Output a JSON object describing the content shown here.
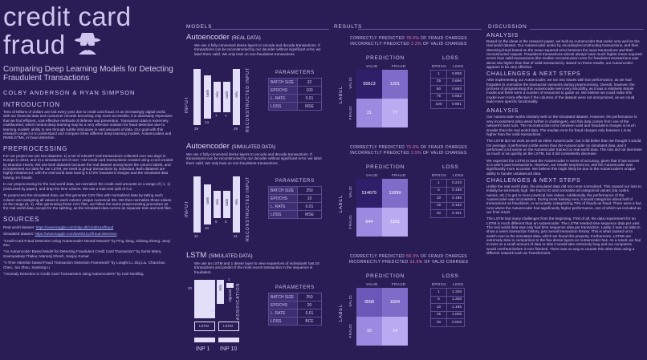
{
  "poster": {
    "title_line1": "credit card",
    "title_line2": "fraud",
    "logo_icon": "spy-icon",
    "subtitle": "Comparing Deep Learning Models for Detecting Fraudulent Transactions",
    "authors": "COLBY ANDERSON & RYAN SIMPSON"
  },
  "intro": {
    "heading": "INTRODUCTION",
    "text": "Tens of billions of dollars are lost every year due to credit card fraud. In an increasingly digital world, with our financial data and consumer records becoming only more accessible, it is absolutely imperative that we find efficient, cost-effective methods of defense and prevention. Transaction data is extremely multifaceted, which means deep learning may be a very effective solution for fraud detection due to learning models' ability to see through subtle intricacies in vast amounts of data. Our goal with this research project is to understand and compare three different deep learning models, Autoencoders and RNN/LSTMs, in fraud detection."
  },
  "preproc": {
    "heading": "PREPROCESSING",
    "p1": "For our project we use two datasets: 1) a set of 248,807 real transactions collected over two days in Europe in 2013, and 2) a simulated set of over ~1M credit card transactions created using a tool created by Brandon Harris. We use both datasets because the real dataset anonymizes the column labels, and to implement our idea for our LSTM, we need to group transactions by individual. Both datasets are highly imbalanced, with the real world data having 0.172% fraudulent charges and the simulated data having 1% frauds.",
    "p2": "In our preprocessing for the real world data, we normalize the credit card amounts on a range of [-1, 1] (instructed by paper), and drop the time column. We use a train-test split of 0.2.",
    "p3": "To preprocess the simulated data, we first generate CSV files with normalized data by taking each column and assigning all values in each column unique numerical IDs. We then normalize those values on the range (0, 1). After generating these CSV files, we follow the same preprocessing procedure as the real world data, except for the splitting, as the simulated data comes as separate train and test files."
  },
  "sources": {
    "heading": "SOURCES",
    "real_label": "Real world dataset: ",
    "real_url": "https://www.kaggle.com/mlg-ulb/creditcardfraud",
    "sim_label": "Simulated dataset: ",
    "sim_url": "https://www.kaggle.com/kartik2112/fraud-detection",
    "r1": "\"Credit Card Fraud Detection Using Autoencoder Neural Network\" by Ping Jiang, Jinliang Zhang, Junyi Zou",
    "r2": "\"An Autoencoder Based Model for Detecting Fraudulent Credit Card Transaction\" by Sumit Misra, Soumyadeep Thakur, Manosij Ghosh, Sanjoy Kumar",
    "r3": "\"A Time Attention based Fraud Transaction Detection Framework\" by Longfei Li, Ziqi Liu, Chaochao Chen, Jun Zhou, Xiaolong Li",
    "r4": "\"Anomaly Detection in Credit Card Transactions using Autoencoders\" by Carl Nordling"
  },
  "columns": {
    "models": "MODELS",
    "results": "RESULTS",
    "discussion": "DISCUSSION"
  },
  "models": [
    {
      "title": "Autoencoder",
      "tag": "(REAL DATA)",
      "desc": "We use 4 fully-connected dense layers to encode and decode transactions. If transactions can be reconstructed by our decoder without significant error, we label them valid. We only train on non-fraudulent transactions.",
      "input_label": "INPUT",
      "output_label": "RECONSTRUCTED INPUT",
      "layers": [
        "tanh",
        "relu",
        "tanh",
        "relu"
      ],
      "sizes_left": [
        "29",
        "14",
        "7"
      ],
      "sizes_right": [
        "7",
        "29"
      ],
      "params_heading": "PARAMETERS",
      "params": [
        [
          "BATCH SIZE",
          "32"
        ],
        [
          "EPOCHS",
          "100"
        ],
        [
          "L. RATE",
          "0.01"
        ],
        [
          "LOSS",
          "MSE"
        ]
      ]
    },
    {
      "title": "Autoencoder",
      "tag": "(SIMULATED DATA)",
      "desc": "We use 4 fully-connected dense layers to encode and decode transactions. If transactions can be reconstructed by our decoder without significant error, we label them valid. We only train on non-fraudulent transactions.",
      "input_label": "INPUT",
      "output_label": "RECONSTRUCTED INPUT",
      "layers": [
        "tanh",
        "relu",
        "tanh",
        "relu"
      ],
      "sizes_left": [
        "21",
        "10",
        "5"
      ],
      "sizes_right": [
        "5",
        "21"
      ],
      "params_heading": "PARAMETERS",
      "params": [
        [
          "BATCH SIZE",
          "250"
        ],
        [
          "EPOCHS",
          "10"
        ],
        [
          "L. RATE",
          "0.01"
        ],
        [
          "LOSS",
          "MSE"
        ]
      ]
    },
    {
      "title": "LSTM",
      "tag": "(SIMULATED  DATA)",
      "desc": "We use an LSTM and 1 dense layer to view sequences of individuals' last 10 transactions and predict if the most recent transaction in the sequence is fraudulent.",
      "input_label1": "INP 1",
      "input_label2": "INP 10",
      "output_label": "CLASSIFICATION",
      "lstm_label": "LSTM",
      "dense_label": "relu",
      "sig_label": "sigmoid",
      "size_20a": "20",
      "size_20b": "20",
      "size_1": "1",
      "params_heading": "PARAMETERS",
      "params": [
        [
          "BATCH SIZE",
          "250"
        ],
        [
          "EPOCHS",
          "20"
        ],
        [
          "L. RATE",
          "0.01"
        ],
        [
          "LOSS",
          "BCE"
        ]
      ]
    }
  ],
  "results": [
    {
      "line1_pre": "CORRECTLY PREDICTED ",
      "line1_val": "78.6%",
      "line1_post": " OF FRAUD CHARGES",
      "line2_pre": "INCORRECTLY PREDICTED ",
      "line2_val": "2.2%",
      "line2_post": " OF VALID CHARGES",
      "pred_h": "PREDICTION",
      "loss_h": "LOSS",
      "label_h": "LABEL",
      "col_valid": "VALID",
      "col_fraud": "FRAUD",
      "row_valid": "VALID",
      "row_fraud": "FRAUD",
      "cm": [
        "55613",
        "1251",
        "21",
        "77"
      ],
      "epoch_h": "EPOCH",
      "loss_col": "LOSS",
      "loss_rows": [
        [
          "1",
          "0.808"
        ],
        [
          "25",
          "0.696"
        ],
        [
          "50",
          "0.693"
        ],
        [
          "75",
          "0.692"
        ],
        [
          "100",
          "0.691"
        ]
      ]
    },
    {
      "line1_pre": "CORRECTLY PREDICTED ",
      "line1_val": "70.0%",
      "line1_post": " OF FRAUD CHARGES",
      "line2_pre": "INCORRECTLY PREDICTED ",
      "line2_val": "2.5%",
      "line2_post": " OF VALID CHARGES",
      "pred_h": "PREDICTION",
      "loss_h": "LOSS",
      "label_h": "LABEL",
      "col_valid": "VALID",
      "col_fraud": "FRAUD",
      "row_valid": "VALID",
      "row_fraud": "FRAUD",
      "cm": [
        "514675",
        "11899",
        "644",
        "1501"
      ],
      "epoch_h": "EPOCH",
      "loss_col": "LOSS",
      "loss_rows": [
        [
          "1",
          "0.243"
        ],
        [
          "5",
          "0.198"
        ],
        [
          "10",
          "0.195"
        ],
        [
          "15",
          "0.192"
        ],
        [
          "20",
          "0.191"
        ]
      ]
    },
    {
      "line1_pre": "CORRECTLY PREDICTED ",
      "line1_val": "58.3%",
      "line1_post": " OF FRAUD CHARGES",
      "line2_pre": "INCORRECTLY PREDICTED ",
      "line2_val": "33.9%",
      "line2_post": " OF VALID CHARGES",
      "pred_h": "PREDICTION",
      "loss_h": "LOSS",
      "label_h": "LABEL",
      "col_valid": "VALID",
      "col_fraud": "FRAUD",
      "row_valid": "VALID",
      "row_fraud": "FRAUD",
      "cm": [
        "3558",
        "1824",
        "10",
        "14"
      ],
      "epoch_h": "EPOCH",
      "loss_col": "LOSS",
      "loss_rows": [
        [
          "1",
          "1.326"
        ],
        [
          "5",
          "1.208"
        ],
        [
          "10",
          "1.165"
        ],
        [
          "15",
          "1.025"
        ],
        [
          "20",
          "0.918"
        ]
      ]
    }
  ],
  "discussion": {
    "a1_h": "ANALYSIS",
    "a1": "Based on the ideas in the research paper, we built an Autoencoder that works very well on the real world dataset. Our Autoencoder works by encoding/reconstructing transactions, and then detecting fraud based on the mean-squared error between the input transactions and their reconstructed outputs. Fraudulent transactions almost always have much higher mean-squared errors than valid transactions (the median reconstruction error for fraudulent transactions was about 26x higher than that of valid transactions). Based on these results, our Autoencoder appears to be very effective.",
    "c1_h": "CHALLENGES & NEXT STEPS",
    "c1": "After implementing our Autoencoder, we ran into issues with low performance, as we had forgotten to normalize the transaction amounts during preprocessing. Overall, however, the process of programming this Autoencoder went very smoothly, as it was a relatively simple model and there were a number of resources to guide us. We believe we could make this model even more effective if the columns of the dataset were not anonymized, as we could build more specific functionality.",
    "a2_h": "ANALYSIS",
    "a2": "Our Autoencoder works similarly well on the simulated dataset. However, the performance is very inconsistent (discussed further in challenges), and this data comes from one of the network's best runs. The reconstruction error between valid and fraudulent charges is much smaller than the real world data. The median error for fraud charges only between 1.5-6x higher than the valid transactions.",
    "a2b": "The LSTM did not work as well as either Autoencoder, but it did better than we thought it would. On average, it performed a little worse than the Autoencoder on simulated data, and it performed a lot worse on the Autoencoder trained on real world data. The loss did not decrease as much or as quickly as the LSTM, but it did consistently decrease.",
    "a2c": "We expected the LSTM to beat the Autoencoder in terms of accuracy, given that it has access to a user's past transactions. However, our results surprised us, and the Autoencoder was significantly more accurate. We believe this might likely be due to the Autoencoder's unique ability to handle unbalanced data.",
    "c2_h": "CHALLENGES & NEXT STEPS",
    "c2": "Unlike the real world data, the simulated data did not come normalized. This caused our loss to initially be extremely high. We had to ID and normalize all categorical values (zip codes, names, etc.) to get to more practical loss values. Additionally, the performance of the Autoencoder was inconsistent. During most training runs, it would categorize about half of transactions as fraudulent, or accurately categorizing 70% of frauds as fraud. There were a few runs where the Autoencoder had significantly higher performance, one of which we included as our final result.",
    "c2b": "The LSTM had many challenges from the beginning. First of all, the data requirement for an LSTM is much different than an Autoencoder. The LSTM needed time sequence data per user. The real world data was only had time sequence data per transaction. Lastly, it was not able to show a users transaction history, just overall transaction history. This is what caused us to switch over to the simulated data, which we found this property. Furthermore, LSTMs are extremely slow in comparison to the few dense layers an Autoencoder has. As a result, we had to train on a small amount of data or else it would take extremely long and our computers would overheat before it ever finished. There was no way to counter this other than using a different network such as Transformers."
  },
  "colors": {
    "bg": "#2a1d55",
    "panel": "#3a2b6e",
    "accent": "#f07ab0",
    "cm_dark": "#2f1f6b",
    "cm_light": "#b9aaf2"
  }
}
